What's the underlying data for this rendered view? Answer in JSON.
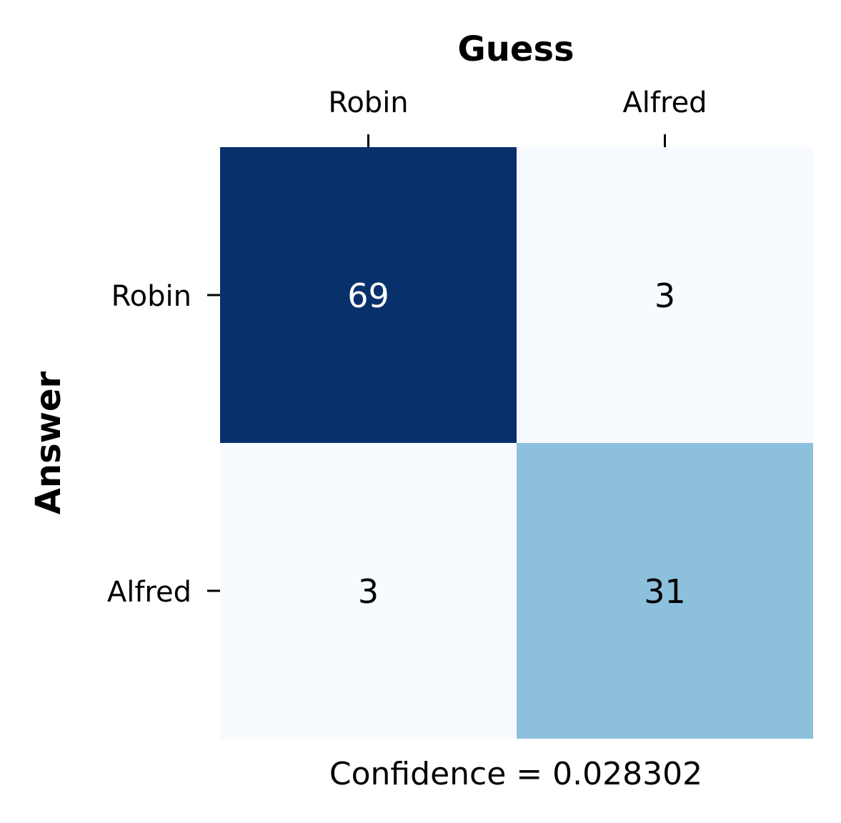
{
  "chart_data": {
    "type": "heatmap",
    "title": "Guess",
    "xlabel": "Guess",
    "ylabel": "Answer",
    "x_categories": [
      "Robin",
      "Alfred"
    ],
    "y_categories": [
      "Robin",
      "Alfred"
    ],
    "values": [
      [
        69,
        3
      ],
      [
        3,
        31
      ]
    ],
    "colormap": "Blues",
    "colorbar": false,
    "xaxis_position": "top",
    "footer": "Confidence = 0.028302"
  },
  "colors": {
    "low": "#f7fbff",
    "mid": "#8abedb",
    "high": "#08306b",
    "text_dark": "#000000",
    "text_light": "#ffffff"
  }
}
